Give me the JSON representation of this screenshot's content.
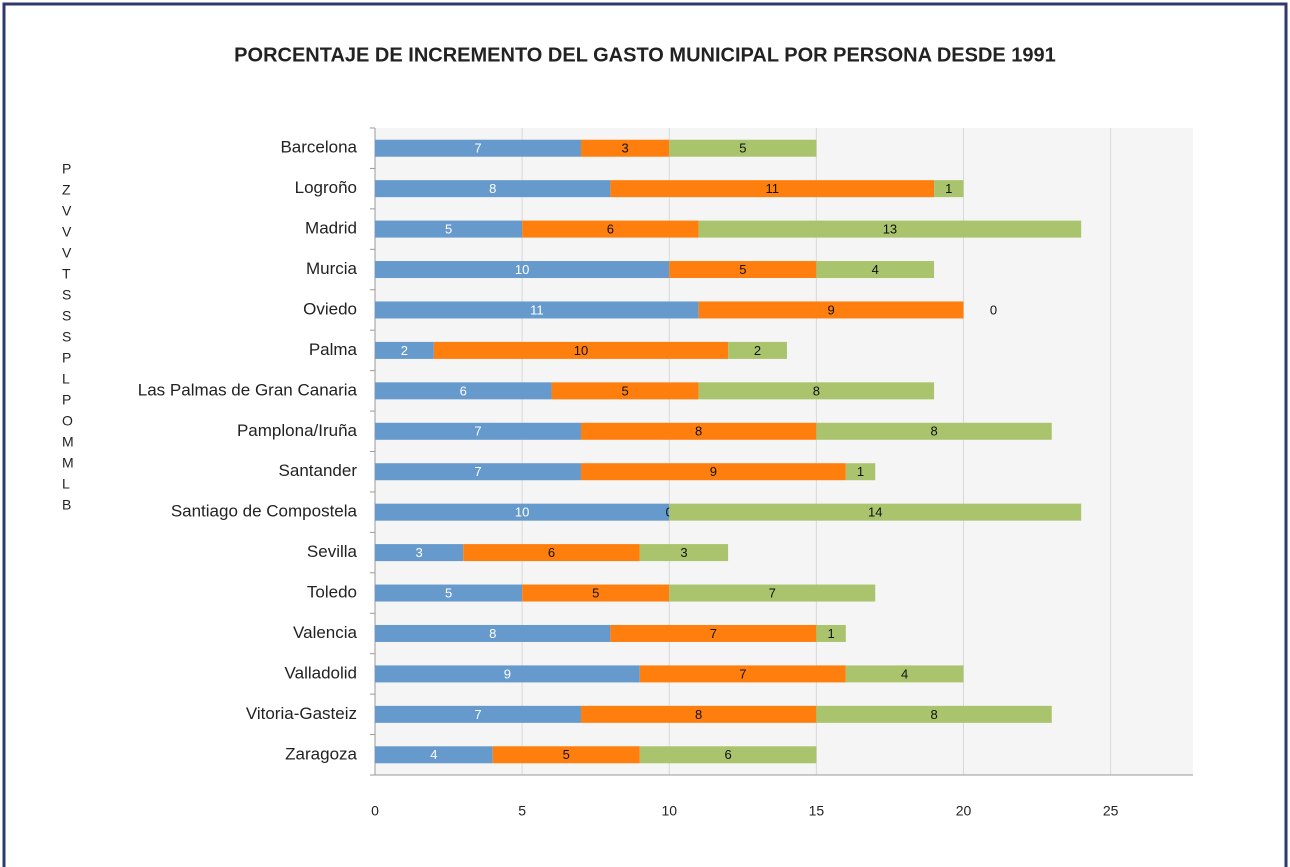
{
  "chart_data": {
    "type": "stacked_barh",
    "title": "PORCENTAJE DE INCREMENTO DEL GASTO MUNICIPAL POR PERSONA DESDE 1991",
    "categories": [
      "Barcelona",
      "Logroño",
      "Madrid",
      "Murcia",
      "Oviedo",
      "Palma",
      "Las Palmas de Gran Canaria",
      "Pamplona/Iruña",
      "Santander",
      "Santiago de Compostela",
      "Sevilla",
      "Toledo",
      "Valencia",
      "Valladolid",
      "Vitoria-Gasteiz",
      "Zaragoza"
    ],
    "series": [
      {
        "color": "#6699cc",
        "values": [
          7,
          8,
          5,
          10,
          11,
          2,
          6,
          7,
          7,
          10,
          3,
          5,
          8,
          9,
          7,
          4
        ]
      },
      {
        "color": "#ff7f0e",
        "values": [
          3,
          11,
          6,
          5,
          9,
          10,
          5,
          8,
          9,
          0,
          6,
          5,
          7,
          7,
          8,
          5
        ]
      },
      {
        "color": "#a9c46c",
        "values": [
          5,
          1,
          13,
          4,
          0,
          2,
          8,
          8,
          1,
          14,
          3,
          7,
          1,
          4,
          8,
          6
        ]
      }
    ],
    "xlim": [
      0,
      27.8
    ],
    "xticks": [
      0,
      5,
      10,
      15,
      20,
      25
    ],
    "grid": true,
    "overflow_text": [
      "P",
      "Z",
      "V",
      "V",
      "V",
      "T",
      "S",
      "S",
      "S",
      "P",
      "L",
      "P",
      "O",
      "M",
      "M",
      "L",
      "B"
    ]
  }
}
